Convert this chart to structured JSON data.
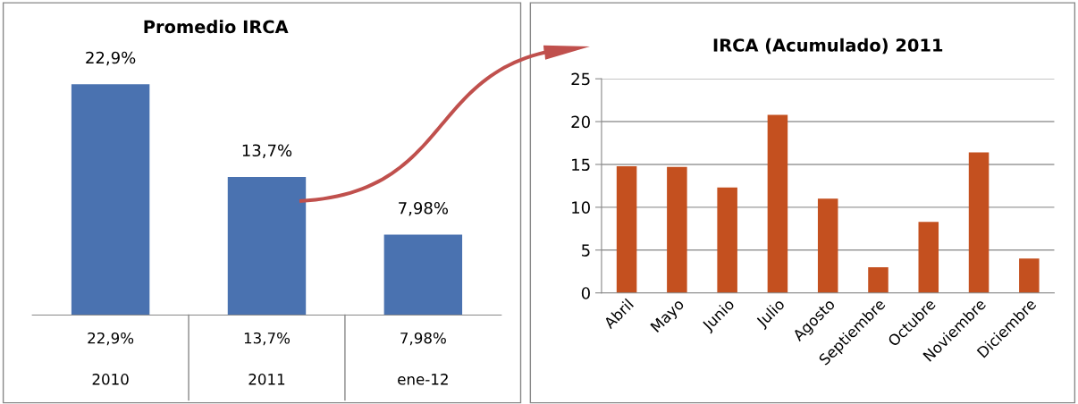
{
  "chart_data": [
    {
      "type": "bar",
      "title": "Promedio IRCA",
      "categories": [
        "2010",
        "2011",
        "ene-12"
      ],
      "values": [
        22.9,
        13.7,
        7.98
      ],
      "value_labels": [
        "22,9%",
        "13,7%",
        "7,98%"
      ],
      "color": "#4a72b0",
      "grid": false,
      "legend": false
    },
    {
      "type": "bar",
      "title": "IRCA (Acumulado) 2011",
      "categories": [
        "Abril",
        "Mayo",
        "Junio",
        "Julio",
        "Agosto",
        "Septiembre",
        "Octubre",
        "Noviembre",
        "Diciembre"
      ],
      "values": [
        14.8,
        14.7,
        12.3,
        20.8,
        11.0,
        3.0,
        8.3,
        16.4,
        4.0
      ],
      "color": "#c4501f",
      "ylim": [
        0,
        25
      ],
      "yticks": [
        0,
        5,
        10,
        15,
        20,
        25
      ],
      "grid": "y",
      "legend": false
    }
  ]
}
